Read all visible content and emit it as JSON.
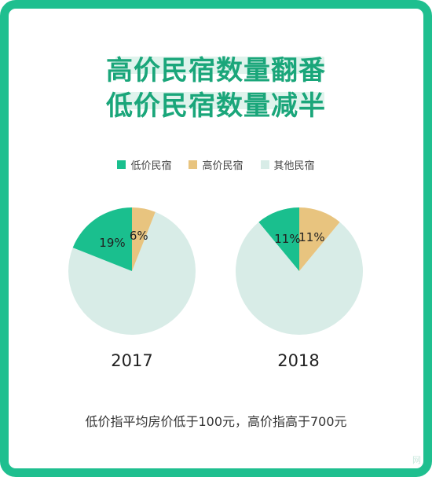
{
  "title": {
    "line1": "高价民宿数量翻番",
    "line2": "低价民宿数量减半"
  },
  "colors": {
    "frame": "#1fbf8f",
    "title": "#1aa67a",
    "low": "#1abf8e",
    "high": "#e8c47f",
    "other": "#d8ece7"
  },
  "legend": [
    "低价民宿",
    "高价民宿",
    "其他民宿"
  ],
  "footnote": "低价指平均房价低于100元，高价指高于700元",
  "watermark": "网",
  "chart_data": [
    {
      "type": "pie",
      "title": "2017",
      "categories": [
        "低价民宿",
        "高价民宿",
        "其他民宿"
      ],
      "values": [
        19,
        6,
        75
      ],
      "labels": [
        "19%",
        "6%",
        ""
      ]
    },
    {
      "type": "pie",
      "title": "2018",
      "categories": [
        "低价民宿",
        "高价民宿",
        "其他民宿"
      ],
      "values": [
        11,
        11,
        78
      ],
      "labels": [
        "11%",
        "11%",
        ""
      ]
    }
  ]
}
